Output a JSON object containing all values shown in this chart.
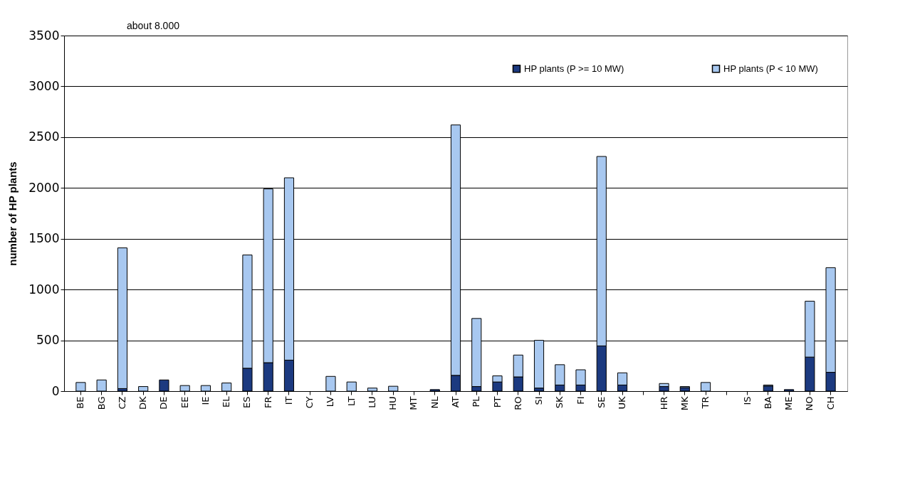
{
  "chart_data": {
    "type": "bar",
    "ylabel": "number of HP plants",
    "categories": [
      "BE",
      "BG",
      "CZ",
      "DK",
      "DE",
      "EE",
      "IE",
      "EL",
      "ES",
      "FR",
      "IT",
      "CY",
      "LV",
      "LT",
      "LU",
      "HU",
      "MT",
      "NL",
      "AT",
      "PL",
      "PT",
      "RO",
      "SI",
      "SK",
      "FI",
      "SE",
      "UK",
      null,
      "HR",
      "MK",
      "TR",
      null,
      "IS",
      "BA",
      "ME",
      "NO",
      "CH"
    ],
    "series": [
      {
        "name": "HP plants (P >= 10 MW)",
        "color": "#1c3a80",
        "values": [
          0,
          0,
          25,
          0,
          110,
          0,
          0,
          null,
          225,
          280,
          305,
          0,
          0,
          0,
          0,
          0,
          0,
          15,
          155,
          45,
          90,
          140,
          30,
          60,
          60,
          445,
          60,
          null,
          45,
          35,
          0,
          null,
          0,
          50,
          15,
          335,
          185
        ]
      },
      {
        "name": "HP plants (P < 10 MW)",
        "color": "#a8c8f0",
        "values": [
          85,
          110,
          1385,
          45,
          null,
          55,
          55,
          80,
          1115,
          1710,
          1795,
          0,
          145,
          90,
          30,
          48,
          0,
          0,
          2465,
          670,
          60,
          215,
          470,
          200,
          150,
          1865,
          120,
          null,
          30,
          10,
          85,
          null,
          0,
          10,
          0,
          550,
          1030
        ]
      }
    ],
    "stacked": true,
    "ylim": [
      0,
      3500
    ],
    "yticks": [
      0,
      500,
      1000,
      1500,
      2000,
      2500,
      3000,
      3500
    ],
    "grid": "y",
    "legend": "top right",
    "annotations": [
      "about 8.000"
    ]
  }
}
